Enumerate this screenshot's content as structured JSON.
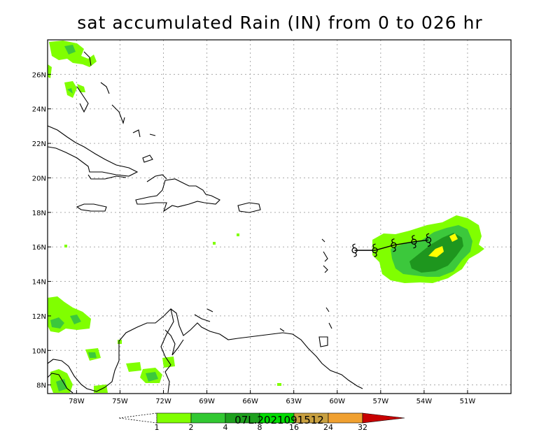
{
  "title": "sat accumulated Rain (IN) from 0 to 026 hr",
  "map": {
    "lon_range": [
      -80,
      -48
    ],
    "lat_range": [
      7.5,
      28
    ],
    "lon_ticks": [
      {
        "value": -78,
        "label": "78W"
      },
      {
        "value": -75,
        "label": "75W"
      },
      {
        "value": -72,
        "label": "72W"
      },
      {
        "value": -69,
        "label": "69W"
      },
      {
        "value": -66,
        "label": "66W"
      },
      {
        "value": -63,
        "label": "63W"
      },
      {
        "value": -60,
        "label": "60W"
      },
      {
        "value": -57,
        "label": "57W"
      },
      {
        "value": -54,
        "label": "54W"
      },
      {
        "value": -51,
        "label": "51W"
      }
    ],
    "lat_ticks": [
      {
        "value": 8,
        "label": "8N"
      },
      {
        "value": 10,
        "label": "10N"
      },
      {
        "value": 12,
        "label": "12N"
      },
      {
        "value": 14,
        "label": "14N"
      },
      {
        "value": 16,
        "label": "16N"
      },
      {
        "value": 18,
        "label": "18N"
      },
      {
        "value": 20,
        "label": "20N"
      },
      {
        "value": 22,
        "label": "22N"
      },
      {
        "value": 24,
        "label": "24N"
      },
      {
        "value": 26,
        "label": "26N"
      }
    ],
    "grid": true
  },
  "storm_track": {
    "label": "07L.2021091512",
    "points": [
      {
        "lon": -58.8,
        "lat": 15.8
      },
      {
        "lon": -57.4,
        "lat": 15.8
      },
      {
        "lon": -56.1,
        "lat": 16.1
      },
      {
        "lon": -54.7,
        "lat": 16.3
      },
      {
        "lon": -53.7,
        "lat": 16.4
      }
    ]
  },
  "colorbar": {
    "levels": [
      "1",
      "2",
      "4",
      "8",
      "16",
      "24",
      "32"
    ],
    "colors": [
      "#80ff00",
      "#32c832",
      "#1ea01e",
      "#00dc00",
      "#c8a040",
      "#f0a030",
      "#c80000"
    ]
  },
  "rain_colors": {
    "light": "#80ff00",
    "medium": "#3cc83c",
    "heavy": "#1e961e",
    "max": "#ffff00"
  }
}
